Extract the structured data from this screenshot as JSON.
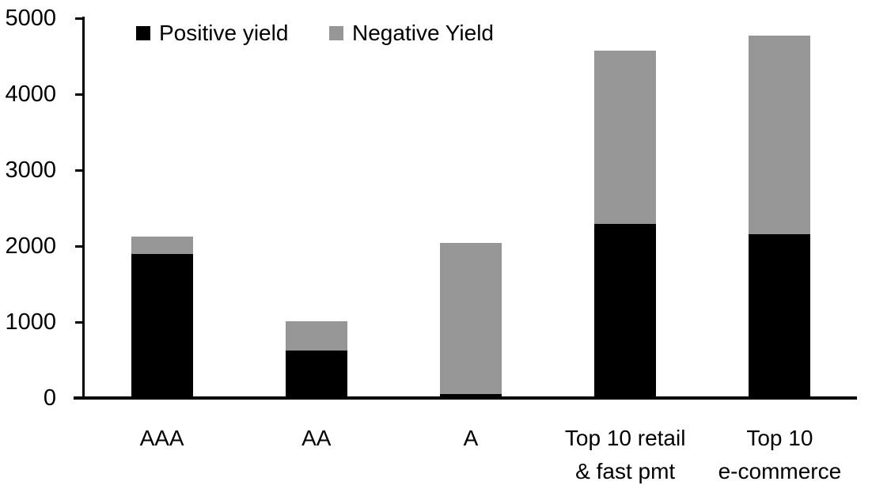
{
  "chart_data": {
    "type": "bar",
    "stacked": true,
    "title": "",
    "xlabel": "",
    "ylabel": "",
    "categories": [
      "AAA",
      "AA",
      "A",
      "Top 10 retail\n& fast pmt",
      "Top 10\ne-commerce"
    ],
    "series": [
      {
        "name": "Positive yield",
        "color": "#000000",
        "values": [
          1900,
          630,
          50,
          2290,
          2160
        ]
      },
      {
        "name": "Negative Yield",
        "color": "#969696",
        "values": [
          230,
          380,
          1990,
          2280,
          2610
        ]
      }
    ],
    "totals": [
      2130,
      1010,
      2040,
      4570,
      4770
    ],
    "ylim": [
      0,
      5000
    ],
    "yticks": [
      "0",
      "1000",
      "2000",
      "3000",
      "4000",
      "5000"
    ],
    "grid": false,
    "legend_position": "top",
    "axis_color": "#000000",
    "background_color": "#ffffff"
  }
}
